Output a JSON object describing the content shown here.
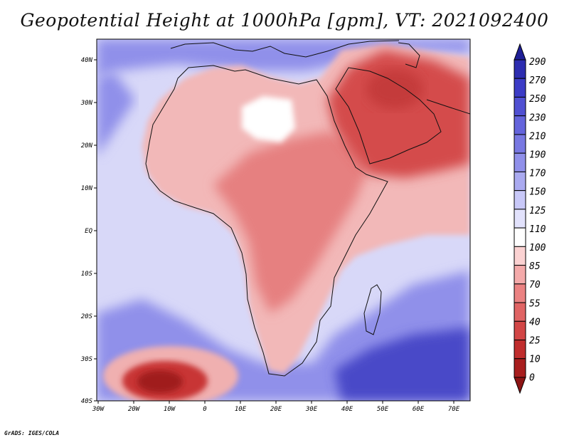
{
  "title": "Geopotential Height at 1000hPa [gpm], VT: 2021092400",
  "credit": "GrADS: IGES/COLA",
  "lat_labels": [
    "40N",
    "30N",
    "20N",
    "10N",
    "EQ",
    "10S",
    "20S",
    "30S",
    "40S"
  ],
  "lon_labels": [
    "30W",
    "20W",
    "10W",
    "0",
    "10E",
    "20E",
    "30E",
    "40E",
    "50E",
    "60E",
    "70E"
  ],
  "colorbar": {
    "labels": [
      "290",
      "270",
      "250",
      "230",
      "210",
      "190",
      "170",
      "150",
      "125",
      "110",
      "100",
      "85",
      "70",
      "55",
      "40",
      "25",
      "10",
      "0"
    ],
    "colors": [
      "#1f1f96",
      "#2d2db0",
      "#3c3cc6",
      "#5050d2",
      "#6464dc",
      "#7878e2",
      "#9090ea",
      "#aaaaf0",
      "#c8c8f8",
      "#e2e2fc",
      "#ffffff",
      "#fbd2d2",
      "#f4aaaa",
      "#eb8282",
      "#e06464",
      "#d24646",
      "#c02d2d",
      "#a81e1e",
      "#8c1414"
    ]
  },
  "field_colors": {
    "ocean_base": "#d8d8f8",
    "land_base": "#f2b8b8",
    "land_hot": "#e68080",
    "arabia": "#d44c4c",
    "arabia_core": "#c43a3a",
    "sahara_white": "#ffffff",
    "south_blue": "#9090ea",
    "south_deep": "#4848c8",
    "south_low": "#c83434",
    "south_low_core": "#a01e1e",
    "south_low_ring": "#f0b0b0",
    "coast": "#111111"
  }
}
